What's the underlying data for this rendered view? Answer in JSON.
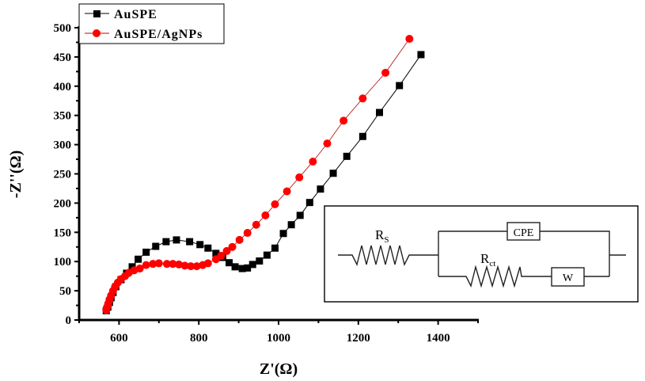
{
  "chart_data": {
    "type": "scatter",
    "title": "",
    "xlabel": "Z'(Ω)",
    "ylabel": "-Z''(Ω)",
    "xlim": [
      500,
      1500
    ],
    "ylim": [
      0,
      500
    ],
    "xticks": [
      600,
      800,
      1000,
      1200,
      1400
    ],
    "yticks": [
      0,
      50,
      100,
      150,
      200,
      250,
      300,
      350,
      400,
      450,
      500
    ],
    "legend_position": "top-left",
    "series": [
      {
        "name": "AuSPE",
        "color": "#000000",
        "marker": "square",
        "x": [
          568,
          572,
          576,
          580,
          585,
          592,
          605,
          619,
          633,
          648,
          668,
          692,
          718,
          744,
          777,
          803,
          823,
          843,
          860,
          876,
          891,
          909,
          922,
          935,
          952,
          971,
          991,
          1012,
          1032,
          1054,
          1078,
          1105,
          1137,
          1171,
          1211,
          1253,
          1303,
          1357
        ],
        "y": [
          16,
          22,
          30,
          38,
          47,
          57,
          69,
          80,
          91,
          104,
          116,
          126,
          134,
          137,
          134,
          129,
          123,
          114,
          107,
          98,
          91,
          88,
          89,
          95,
          101,
          111,
          123,
          148,
          163,
          179,
          201,
          224,
          251,
          280,
          314,
          355,
          401,
          454
        ]
      },
      {
        "name": "AuSPE/AgNPs",
        "color": "#ff0000",
        "marker": "circle",
        "x": [
          568,
          570,
          573,
          576,
          580,
          585,
          590,
          597,
          605,
          615,
          625,
          638,
          652,
          668,
          685,
          700,
          720,
          735,
          750,
          765,
          780,
          795,
          810,
          823,
          843,
          856,
          870,
          884,
          902,
          922,
          944,
          967,
          991,
          1021,
          1052,
          1086,
          1122,
          1163,
          1211,
          1268,
          1328
        ],
        "y": [
          17,
          22,
          28,
          35,
          42,
          50,
          57,
          64,
          70,
          75,
          81,
          85,
          88,
          94,
          96,
          97,
          96,
          96,
          95,
          93,
          92,
          92,
          94,
          97,
          104,
          110,
          118,
          125,
          137,
          149,
          163,
          179,
          198,
          220,
          244,
          271,
          302,
          341,
          379,
          423,
          481
        ]
      }
    ],
    "inset": {
      "rs_label": "R",
      "rs_sub": "S",
      "rct_label": "R",
      "rct_sub": "ct",
      "cpe_label": "CPE",
      "w_label": "W"
    }
  }
}
